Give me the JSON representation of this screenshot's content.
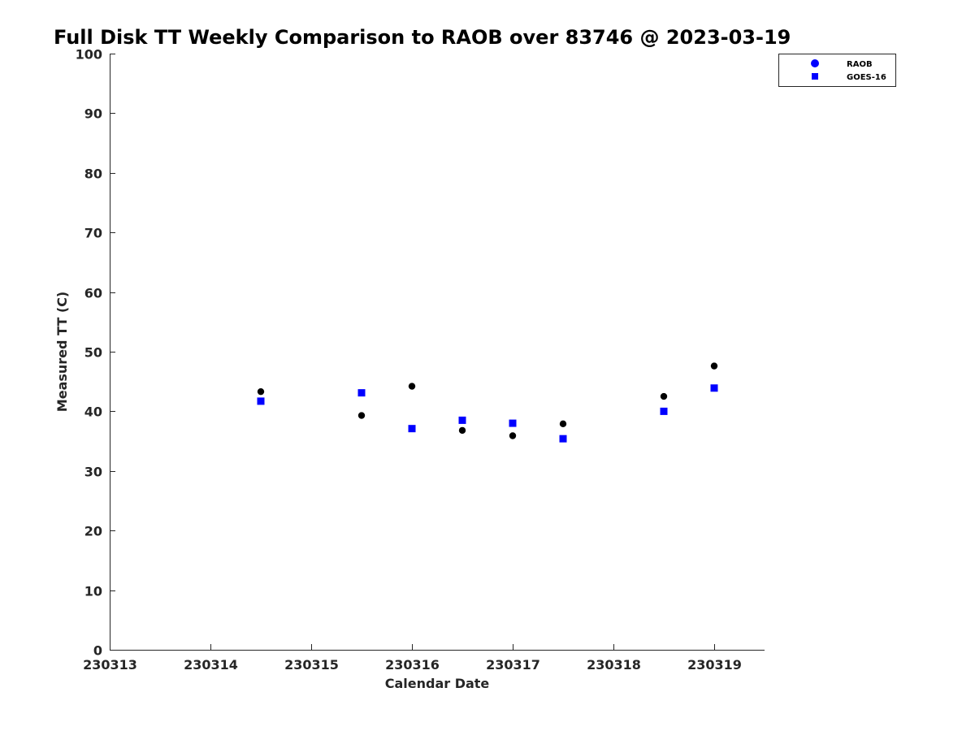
{
  "chart_data": {
    "type": "scatter",
    "title": "Full Disk TT Weekly Comparison to RAOB over 83746 @ 2023-03-19",
    "xlabel": "Calendar Date",
    "ylabel": "Measured TT (C)",
    "xlim": [
      0,
      6.5
    ],
    "ylim": [
      0,
      100
    ],
    "x_ticks": [
      {
        "value": 0,
        "label": "230313"
      },
      {
        "value": 1,
        "label": "230314"
      },
      {
        "value": 2,
        "label": "230315"
      },
      {
        "value": 3,
        "label": "230316"
      },
      {
        "value": 4,
        "label": "230317"
      },
      {
        "value": 5,
        "label": "230318"
      },
      {
        "value": 6,
        "label": "230319"
      }
    ],
    "y_ticks": [
      0,
      10,
      20,
      30,
      40,
      50,
      60,
      70,
      80,
      90,
      100
    ],
    "grid": false,
    "legend_position": "top-right",
    "series": [
      {
        "name": "RAOB",
        "marker": "circle",
        "color": "#000000",
        "legend_color": "#0000ff",
        "x": [
          1.5,
          2.5,
          3.0,
          3.5,
          4.0,
          4.5,
          5.5,
          6.0
        ],
        "values": [
          43.3,
          39.3,
          44.2,
          36.8,
          35.9,
          37.9,
          42.5,
          47.6
        ]
      },
      {
        "name": "GOES-16",
        "marker": "square",
        "color": "#0000ff",
        "legend_color": "#0000ff",
        "x": [
          1.5,
          2.5,
          3.0,
          3.5,
          4.0,
          4.5,
          5.5,
          6.0
        ],
        "values": [
          41.7,
          43.1,
          37.1,
          38.5,
          38.0,
          35.4,
          40.0,
          43.9
        ]
      }
    ]
  }
}
